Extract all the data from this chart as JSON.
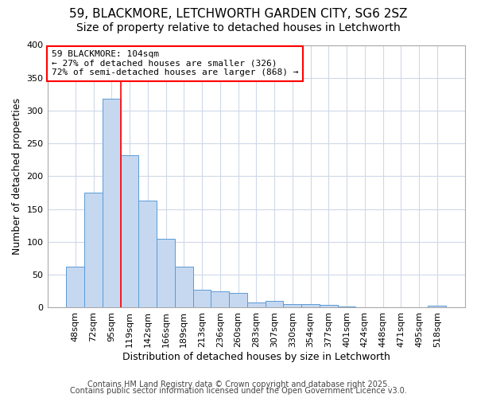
{
  "title_line1": "59, BLACKMORE, LETCHWORTH GARDEN CITY, SG6 2SZ",
  "title_line2": "Size of property relative to detached houses in Letchworth",
  "xlabel": "Distribution of detached houses by size in Letchworth",
  "ylabel": "Number of detached properties",
  "categories": [
    "48sqm",
    "72sqm",
    "95sqm",
    "119sqm",
    "142sqm",
    "166sqm",
    "189sqm",
    "213sqm",
    "236sqm",
    "260sqm",
    "283sqm",
    "307sqm",
    "330sqm",
    "354sqm",
    "377sqm",
    "401sqm",
    "424sqm",
    "448sqm",
    "471sqm",
    "495sqm",
    "518sqm"
  ],
  "values": [
    62,
    175,
    318,
    232,
    163,
    105,
    62,
    27,
    25,
    22,
    8,
    10,
    6,
    5,
    4,
    2,
    1,
    1,
    1,
    1,
    3
  ],
  "bar_color": "#c5d8f0",
  "bar_edge_color": "#5b9bd5",
  "background_color": "#ffffff",
  "plot_bg_color": "#ffffff",
  "red_line_index": 2.5,
  "annotation_line1": "59 BLACKMORE: 104sqm",
  "annotation_line2": "← 27% of detached houses are smaller (326)",
  "annotation_line3": "72% of semi-detached houses are larger (868) →",
  "annotation_box_color": "white",
  "annotation_border_color": "red",
  "ylim": [
    0,
    400
  ],
  "yticks": [
    0,
    50,
    100,
    150,
    200,
    250,
    300,
    350,
    400
  ],
  "footer_line1": "Contains HM Land Registry data © Crown copyright and database right 2025.",
  "footer_line2": "Contains public sector information licensed under the Open Government Licence v3.0.",
  "grid_color": "#d0d8e8",
  "title_fontsize": 11,
  "subtitle_fontsize": 10,
  "tick_fontsize": 8,
  "ylabel_fontsize": 9,
  "xlabel_fontsize": 9,
  "footer_fontsize": 7
}
